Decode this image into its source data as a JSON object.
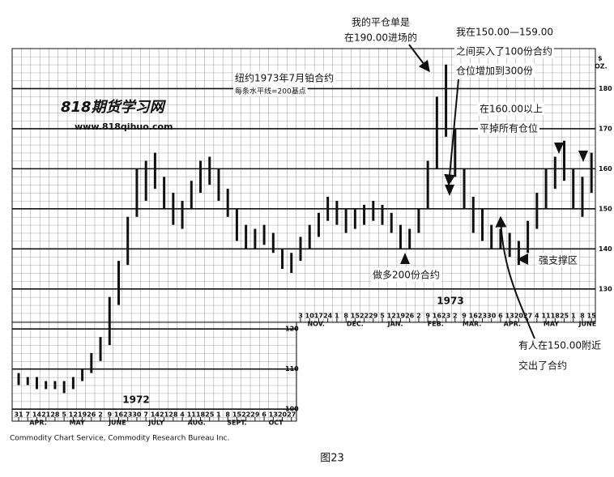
{
  "chart_data": {
    "type": "hilo",
    "color": "#111111",
    "grid": true,
    "y_unit": [
      "$",
      "OZ."
    ],
    "watermark": [
      "818期货学习网",
      "www.818qihuo.com"
    ],
    "ylim": [
      97,
      190
    ],
    "yticks": [
      100,
      110,
      120,
      130,
      140,
      150,
      160,
      170,
      180
    ],
    "xlim": [
      "1972-03-26",
      "1973-06-18"
    ],
    "x": [
      "1972-03-31",
      "1972-04-07",
      "1972-04-14",
      "1972-04-21",
      "1972-04-28",
      "1972-05-05",
      "1972-05-12",
      "1972-05-19",
      "1972-05-26",
      "1972-06-02",
      "1972-06-09",
      "1972-06-16",
      "1972-06-23",
      "1972-06-30",
      "1972-07-07",
      "1972-07-14",
      "1972-07-21",
      "1972-07-28",
      "1972-08-04",
      "1972-08-11",
      "1972-08-18",
      "1972-08-25",
      "1972-09-01",
      "1972-09-08",
      "1972-09-15",
      "1972-09-22",
      "1972-09-29",
      "1972-10-06",
      "1972-10-13",
      "1972-10-20",
      "1972-10-27",
      "1972-11-03",
      "1972-11-10",
      "1972-11-17",
      "1972-11-24",
      "1972-12-01",
      "1972-12-08",
      "1972-12-15",
      "1972-12-22",
      "1972-12-29",
      "1973-01-05",
      "1973-01-12",
      "1973-01-19",
      "1973-01-26",
      "1973-02-02",
      "1973-02-09",
      "1973-02-16",
      "1973-02-23",
      "1973-03-02",
      "1973-03-09",
      "1973-03-16",
      "1973-03-23",
      "1973-03-30",
      "1973-04-06",
      "1973-04-13",
      "1973-04-20",
      "1973-04-27",
      "1973-05-04",
      "1973-05-11",
      "1973-05-18",
      "1973-05-25",
      "1973-06-01",
      "1973-06-08",
      "1973-06-15"
    ],
    "high": [
      109,
      108,
      108,
      107,
      107,
      107,
      108,
      110,
      114,
      118,
      128,
      137,
      148,
      160,
      162,
      164,
      158,
      154,
      152,
      157,
      162,
      163,
      160,
      155,
      150,
      146,
      145,
      146,
      144,
      140,
      139,
      143,
      146,
      149,
      153,
      152,
      150,
      150,
      151,
      152,
      151,
      149,
      146,
      145,
      150,
      162,
      178,
      186,
      170,
      160,
      153,
      150,
      146,
      145,
      144,
      142,
      147,
      154,
      160,
      163,
      167,
      160,
      158,
      164
    ],
    "low": [
      106,
      106,
      105,
      105,
      105,
      104,
      105,
      107,
      109,
      112,
      116,
      126,
      136,
      148,
      152,
      155,
      150,
      146,
      145,
      150,
      154,
      156,
      152,
      148,
      142,
      140,
      140,
      141,
      139,
      135,
      134,
      137,
      140,
      143,
      147,
      146,
      144,
      145,
      146,
      147,
      146,
      144,
      140,
      140,
      144,
      150,
      160,
      168,
      158,
      150,
      144,
      142,
      140,
      140,
      138,
      136,
      139,
      145,
      150,
      155,
      157,
      150,
      148,
      154
    ],
    "xticks": [
      {
        "value": "1972-03-31",
        "label": "31"
      },
      {
        "value": "1972-04-07",
        "label": "7"
      },
      {
        "value": "1972-04-14",
        "label": "14"
      },
      {
        "value": "1972-04-21",
        "label": "21"
      },
      {
        "value": "1972-04-28",
        "label": "28"
      },
      {
        "value": "1972-05-05",
        "label": "5"
      },
      {
        "value": "1972-05-12",
        "label": "12"
      },
      {
        "value": "1972-05-19",
        "label": "19"
      },
      {
        "value": "1972-05-26",
        "label": "26"
      },
      {
        "value": "1972-06-02",
        "label": "2"
      },
      {
        "value": "1972-06-09",
        "label": "9"
      },
      {
        "value": "1972-06-16",
        "label": "16"
      },
      {
        "value": "1972-06-23",
        "label": "23"
      },
      {
        "value": "1972-06-30",
        "label": "30"
      },
      {
        "value": "1972-07-07",
        "label": "7"
      },
      {
        "value": "1972-07-14",
        "label": "14"
      },
      {
        "value": "1972-07-21",
        "label": "21"
      },
      {
        "value": "1972-07-28",
        "label": "28"
      },
      {
        "value": "1972-08-04",
        "label": "4"
      },
      {
        "value": "1972-08-11",
        "label": "11"
      },
      {
        "value": "1972-08-18",
        "label": "18"
      },
      {
        "value": "1972-08-25",
        "label": "25"
      },
      {
        "value": "1972-09-01",
        "label": "1"
      },
      {
        "value": "1972-09-08",
        "label": "8"
      },
      {
        "value": "1972-09-15",
        "label": "15"
      },
      {
        "value": "1972-09-22",
        "label": "22"
      },
      {
        "value": "1972-09-29",
        "label": "29"
      },
      {
        "value": "1972-10-06",
        "label": "6"
      },
      {
        "value": "1972-10-13",
        "label": "13"
      },
      {
        "value": "1972-10-20",
        "label": "20"
      },
      {
        "value": "1972-10-27",
        "label": "27"
      },
      {
        "value": "1972-11-03",
        "label": "3"
      },
      {
        "value": "1972-11-10",
        "label": "10"
      },
      {
        "value": "1972-11-17",
        "label": "17"
      },
      {
        "value": "1972-11-24",
        "label": "24"
      },
      {
        "value": "1972-12-01",
        "label": "1"
      },
      {
        "value": "1972-12-08",
        "label": "8"
      },
      {
        "value": "1972-12-15",
        "label": "15"
      },
      {
        "value": "1972-12-22",
        "label": "22"
      },
      {
        "value": "1972-12-29",
        "label": "29"
      },
      {
        "value": "1973-01-05",
        "label": "5"
      },
      {
        "value": "1973-01-12",
        "label": "12"
      },
      {
        "value": "1973-01-19",
        "label": "19"
      },
      {
        "value": "1973-01-26",
        "label": "26"
      },
      {
        "value": "1973-02-02",
        "label": "2"
      },
      {
        "value": "1973-02-09",
        "label": "9"
      },
      {
        "value": "1973-02-16",
        "label": "16"
      },
      {
        "value": "1973-02-23",
        "label": "23"
      },
      {
        "value": "1973-03-02",
        "label": "2"
      },
      {
        "value": "1973-03-09",
        "label": "9"
      },
      {
        "value": "1973-03-16",
        "label": "16"
      },
      {
        "value": "1973-03-23",
        "label": "23"
      },
      {
        "value": "1973-03-30",
        "label": "30"
      },
      {
        "value": "1973-04-06",
        "label": "6"
      },
      {
        "value": "1973-04-13",
        "label": "13"
      },
      {
        "value": "1973-04-20",
        "label": "20"
      },
      {
        "value": "1973-04-27",
        "label": "27"
      },
      {
        "value": "1973-05-04",
        "label": "4"
      },
      {
        "value": "1973-05-11",
        "label": "11"
      },
      {
        "value": "1973-05-18",
        "label": "18"
      },
      {
        "value": "1973-05-25",
        "label": "25"
      },
      {
        "value": "1973-06-01",
        "label": "1"
      },
      {
        "value": "1973-06-08",
        "label": "8"
      },
      {
        "value": "1973-06-15",
        "label": "15"
      }
    ],
    "month_labels": [
      {
        "value": "1972-04-15",
        "label": "APR."
      },
      {
        "value": "1972-05-15",
        "label": "MAY"
      },
      {
        "value": "1972-06-15",
        "label": "JUNE"
      },
      {
        "value": "1972-07-15",
        "label": "JULY"
      },
      {
        "value": "1972-08-15",
        "label": "AUG."
      },
      {
        "value": "1972-09-15",
        "label": "SEPT."
      },
      {
        "value": "1972-10-15",
        "label": "OCT"
      },
      {
        "value": "1972-11-15",
        "label": "NOV."
      },
      {
        "value": "1972-12-15",
        "label": "DEC."
      },
      {
        "value": "1973-01-15",
        "label": "JAN."
      },
      {
        "value": "1973-02-15",
        "label": "FEB."
      },
      {
        "value": "1973-03-15",
        "label": "MAR."
      },
      {
        "value": "1973-04-15",
        "label": "APR."
      },
      {
        "value": "1973-05-15",
        "label": "MAY"
      },
      {
        "value": "1973-06-12",
        "label": "JUNE"
      }
    ],
    "annotations": [
      "我的平仓单是",
      "在190.00进场的",
      "我在150.00—159.00",
      "之间买入了100份合约",
      "仓位增加到300份",
      "纽约1973年7月铂合约",
      "每条水平线=200基点",
      "在160.00以上",
      "平掉所有仓位",
      "做多200份合约",
      "强支撑区",
      "有人在150.00附近",
      "交出了合约",
      "1972",
      "1973",
      "Commodity Chart Service, Commodity Research Bureau Inc.",
      "图23"
    ]
  }
}
